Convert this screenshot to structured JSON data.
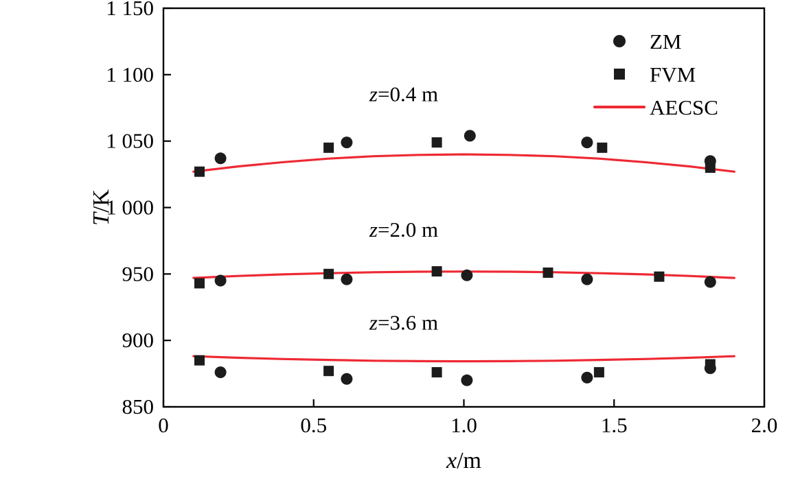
{
  "chart_data": {
    "type": "scatter-line",
    "title": "",
    "xlabel": {
      "var": "x",
      "rest": "/m"
    },
    "ylabel": {
      "var": "T",
      "rest": "/K"
    },
    "xlim": [
      0,
      2.0
    ],
    "ylim": [
      850,
      1150
    ],
    "grid": false,
    "legend_position": "top-right",
    "xticks": [
      {
        "v": 0,
        "label": "0"
      },
      {
        "v": 0.5,
        "label": "0.5"
      },
      {
        "v": 1.0,
        "label": "1.0"
      },
      {
        "v": 1.5,
        "label": "1.5"
      },
      {
        "v": 2.0,
        "label": "2.0"
      }
    ],
    "yticks": [
      {
        "v": 850,
        "label": "850"
      },
      {
        "v": 900,
        "label": "900"
      },
      {
        "v": 950,
        "label": "950"
      },
      {
        "v": 1000,
        "label": "1 000"
      },
      {
        "v": 1050,
        "label": "1 050"
      },
      {
        "v": 1100,
        "label": "1 100"
      },
      {
        "v": 1150,
        "label": "1 150"
      }
    ],
    "annotations": [
      {
        "var": "z",
        "text": "=0.4 m",
        "x": 0.8,
        "y": 1080
      },
      {
        "var": "z",
        "text": "=2.0 m",
        "x": 0.8,
        "y": 978
      },
      {
        "var": "z",
        "text": "=3.6 m",
        "x": 0.8,
        "y": 908
      }
    ],
    "colors": {
      "marker": "#1c1c1c",
      "line": "#ee2933",
      "axis": "#000000"
    },
    "series": [
      {
        "name": "ZM",
        "kind": "scatter",
        "marker": "circle",
        "groups": [
          {
            "z": "0.4",
            "points": [
              [
                0.19,
                1037
              ],
              [
                0.61,
                1049
              ],
              [
                1.02,
                1054
              ],
              [
                1.41,
                1049
              ],
              [
                1.82,
                1035
              ]
            ]
          },
          {
            "z": "2.0",
            "points": [
              [
                0.19,
                945
              ],
              [
                0.61,
                946
              ],
              [
                1.01,
                949
              ],
              [
                1.41,
                946
              ],
              [
                1.82,
                944
              ]
            ]
          },
          {
            "z": "3.6",
            "points": [
              [
                0.19,
                876
              ],
              [
                0.61,
                871
              ],
              [
                1.01,
                870
              ],
              [
                1.41,
                872
              ],
              [
                1.82,
                879
              ]
            ]
          }
        ]
      },
      {
        "name": "FVM",
        "kind": "scatter",
        "marker": "square",
        "groups": [
          {
            "z": "0.4",
            "points": [
              [
                0.12,
                1027
              ],
              [
                0.55,
                1045
              ],
              [
                0.91,
                1049
              ],
              [
                1.46,
                1045
              ],
              [
                1.82,
                1030
              ]
            ]
          },
          {
            "z": "2.0",
            "points": [
              [
                0.12,
                943
              ],
              [
                0.55,
                950
              ],
              [
                0.91,
                952
              ],
              [
                1.28,
                951
              ],
              [
                1.65,
                948
              ]
            ]
          },
          {
            "z": "3.6",
            "points": [
              [
                0.12,
                885
              ],
              [
                0.55,
                877
              ],
              [
                0.91,
                876
              ],
              [
                1.45,
                876
              ],
              [
                1.82,
                882
              ]
            ]
          }
        ]
      },
      {
        "name": "AECSC",
        "kind": "line",
        "curves": [
          [
            [
              0.1,
              1027.0
            ],
            [
              0.25,
              1031.0
            ],
            [
              0.4,
              1034.2
            ],
            [
              0.55,
              1036.8
            ],
            [
              0.7,
              1038.6
            ],
            [
              0.85,
              1039.6
            ],
            [
              1.0,
              1040.0
            ],
            [
              1.15,
              1039.6
            ],
            [
              1.3,
              1038.6
            ],
            [
              1.45,
              1036.8
            ],
            [
              1.6,
              1034.2
            ],
            [
              1.75,
              1031.0
            ],
            [
              1.9,
              1027.0
            ]
          ],
          [
            [
              0.1,
              947.0
            ],
            [
              0.25,
              948.5
            ],
            [
              0.4,
              949.7
            ],
            [
              0.55,
              950.6
            ],
            [
              0.7,
              951.3
            ],
            [
              0.85,
              951.7
            ],
            [
              1.0,
              951.8
            ],
            [
              1.15,
              951.7
            ],
            [
              1.3,
              951.3
            ],
            [
              1.45,
              950.6
            ],
            [
              1.6,
              949.7
            ],
            [
              1.75,
              948.5
            ],
            [
              1.9,
              947.0
            ]
          ],
          [
            [
              0.1,
              888.1
            ],
            [
              0.25,
              886.9
            ],
            [
              0.4,
              886.0
            ],
            [
              0.55,
              885.3
            ],
            [
              0.7,
              884.7
            ],
            [
              0.85,
              884.4
            ],
            [
              1.0,
              884.3
            ],
            [
              1.15,
              884.4
            ],
            [
              1.3,
              884.7
            ],
            [
              1.45,
              885.3
            ],
            [
              1.6,
              886.0
            ],
            [
              1.75,
              886.9
            ],
            [
              1.9,
              888.1
            ]
          ]
        ]
      }
    ]
  }
}
